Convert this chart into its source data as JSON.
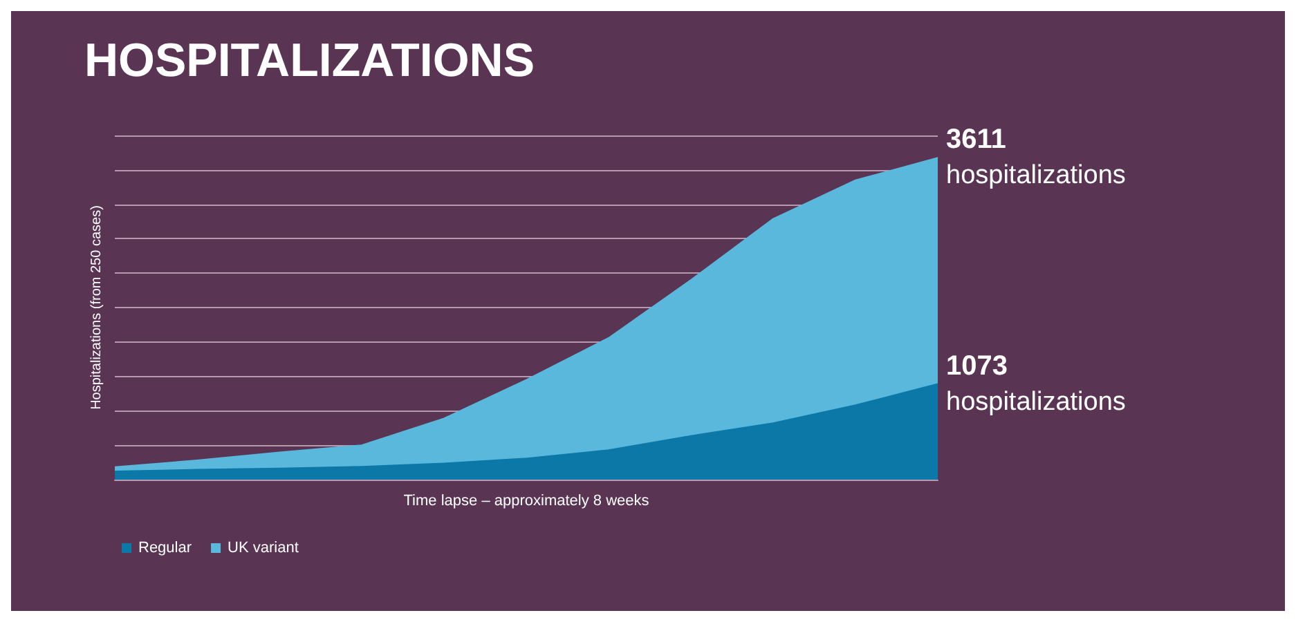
{
  "chart_data": {
    "type": "area",
    "title": "HOSPITALIZATIONS",
    "xlabel": "Time lapse – approximately 8 weeks",
    "ylabel": "Hospitalizations (from 250 cases)",
    "tick_labels": false,
    "ylim": [
      0,
      3860
    ],
    "yticks": [
      {
        "value": 0,
        "label": null
      },
      {
        "value": 386,
        "label": null
      },
      {
        "value": 772,
        "label": null
      },
      {
        "value": 1158,
        "label": null
      },
      {
        "value": 1544,
        "label": null
      },
      {
        "value": 1930,
        "label": null
      },
      {
        "value": 2316,
        "label": null
      },
      {
        "value": 2702,
        "label": null
      },
      {
        "value": 3088,
        "label": null
      },
      {
        "value": 3474,
        "label": null
      },
      {
        "value": 3860,
        "label": null
      }
    ],
    "grid": "y",
    "legend": "bottom",
    "categories": [
      null,
      null,
      null,
      null,
      null,
      null,
      null,
      null,
      null,
      null,
      null
    ],
    "series": [
      {
        "name": "Regular",
        "color": "#0b78a8",
        "values": [
          93,
          112,
          126,
          145,
          182,
          238,
          331,
          490,
          634,
          835,
          1073
        ],
        "value_labels": [
          null,
          null,
          null,
          null,
          null,
          null,
          null,
          null,
          null,
          null,
          "1073 hospitalizations"
        ]
      },
      {
        "name": "UK variant",
        "color": "#5ab8dc",
        "values": [
          141,
          217,
          307,
          386,
          686,
          1119,
          1589,
          2239,
          2925,
          3358,
          3611
        ],
        "value_labels": [
          null,
          null,
          null,
          null,
          null,
          null,
          null,
          null,
          null,
          null,
          "3611 hospitalizations"
        ]
      }
    ]
  }
}
